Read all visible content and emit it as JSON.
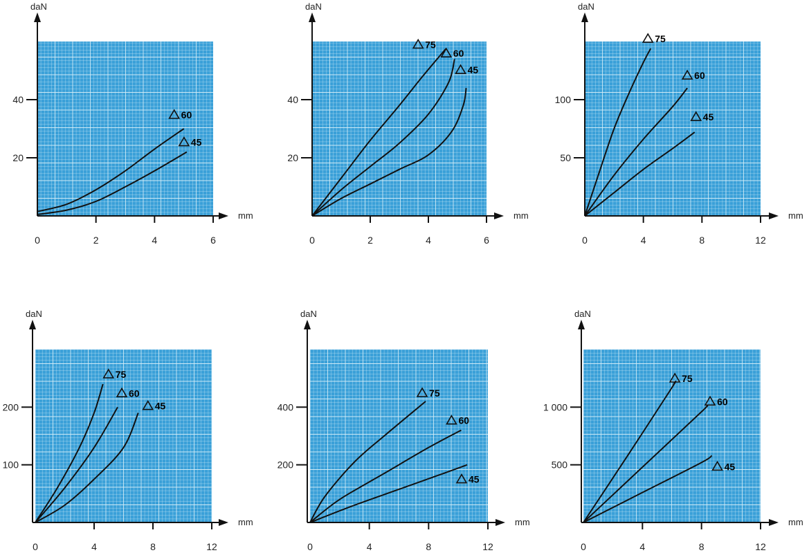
{
  "chart_data": [
    {
      "type": "line",
      "ylabel": "daN",
      "xlabel": "mm",
      "xlim": [
        0,
        6
      ],
      "ylim": [
        0,
        60
      ],
      "x_ticks": [
        "0",
        "2",
        "4",
        "6"
      ],
      "y_ticks": [
        {
          "value": 20,
          "label": "20"
        },
        {
          "value": 40,
          "label": "40"
        }
      ],
      "series": [
        {
          "name": "60",
          "points": [
            [
              0,
              1.5
            ],
            [
              1,
              4
            ],
            [
              2,
              9
            ],
            [
              3,
              15.5
            ],
            [
              4,
              23
            ],
            [
              5,
              30
            ]
          ]
        },
        {
          "name": "45",
          "points": [
            [
              0,
              0.5
            ],
            [
              1,
              2
            ],
            [
              2,
              5
            ],
            [
              3,
              10
            ],
            [
              4,
              15.5
            ],
            [
              5.1,
              22
            ]
          ]
        }
      ]
    },
    {
      "type": "line",
      "ylabel": "daN",
      "xlabel": "mm",
      "xlim": [
        0,
        6
      ],
      "ylim": [
        0,
        60
      ],
      "x_ticks": [
        "0",
        "2",
        "4",
        "6"
      ],
      "y_ticks": [
        {
          "value": 20,
          "label": "20"
        },
        {
          "value": 40,
          "label": "40"
        }
      ],
      "series": [
        {
          "name": "75",
          "points": [
            [
              0,
              0
            ],
            [
              1,
              13
            ],
            [
              2,
              26
            ],
            [
              3,
              38
            ],
            [
              3.8,
              48
            ],
            [
              4.6,
              57.5
            ]
          ]
        },
        {
          "name": "60",
          "points": [
            [
              0,
              0
            ],
            [
              1,
              9
            ],
            [
              2,
              17
            ],
            [
              3,
              25
            ],
            [
              4,
              35
            ],
            [
              4.7,
              46
            ],
            [
              4.9,
              54
            ]
          ]
        },
        {
          "name": "45",
          "points": [
            [
              0,
              0
            ],
            [
              1,
              6
            ],
            [
              2,
              11
            ],
            [
              3,
              16
            ],
            [
              4,
              21
            ],
            [
              4.8,
              29
            ],
            [
              5.2,
              38
            ],
            [
              5.3,
              44
            ]
          ]
        }
      ]
    },
    {
      "type": "line",
      "ylabel": "daN",
      "xlabel": "mm",
      "xlim": [
        0,
        12
      ],
      "ylim": [
        0,
        150
      ],
      "x_ticks": [
        "0",
        "4",
        "8",
        "12"
      ],
      "y_ticks": [
        {
          "value": 50,
          "label": "50"
        },
        {
          "value": 100,
          "label": "100"
        }
      ],
      "series": [
        {
          "name": "75",
          "points": [
            [
              0,
              0
            ],
            [
              1,
              38
            ],
            [
              2,
              75
            ],
            [
              3,
              105
            ],
            [
              4,
              132
            ],
            [
              4.5,
              144
            ]
          ]
        },
        {
          "name": "60",
          "points": [
            [
              0,
              0
            ],
            [
              2,
              35
            ],
            [
              4,
              66
            ],
            [
              6,
              94
            ],
            [
              7,
              110
            ]
          ]
        },
        {
          "name": "45",
          "points": [
            [
              0,
              0
            ],
            [
              2,
              20
            ],
            [
              4,
              40
            ],
            [
              6,
              58
            ],
            [
              7.5,
              72
            ]
          ]
        }
      ]
    },
    {
      "type": "line",
      "ylabel": "daN",
      "xlabel": "mm",
      "xlim": [
        0,
        12
      ],
      "ylim": [
        0,
        300
      ],
      "x_ticks": [
        "0",
        "4",
        "8",
        "12"
      ],
      "y_ticks": [
        {
          "value": 100,
          "label": "100"
        },
        {
          "value": 200,
          "label": "200"
        }
      ],
      "series": [
        {
          "name": "75",
          "points": [
            [
              0,
              0
            ],
            [
              1.5,
              60
            ],
            [
              3,
              130
            ],
            [
              4,
              190
            ],
            [
              4.6,
              240
            ]
          ]
        },
        {
          "name": "60",
          "points": [
            [
              0,
              0
            ],
            [
              2,
              60
            ],
            [
              4,
              130
            ],
            [
              5.6,
              200
            ]
          ]
        },
        {
          "name": "45",
          "points": [
            [
              0,
              0
            ],
            [
              2,
              30
            ],
            [
              4,
              75
            ],
            [
              6,
              130
            ],
            [
              7,
              190
            ]
          ]
        }
      ]
    },
    {
      "type": "line",
      "ylabel": "daN",
      "xlabel": "mm",
      "xlim": [
        0,
        12
      ],
      "ylim": [
        0,
        600
      ],
      "x_ticks": [
        "0",
        "4",
        "8",
        "12"
      ],
      "y_ticks": [
        {
          "value": 200,
          "label": "200"
        },
        {
          "value": 400,
          "label": "400"
        }
      ],
      "series": [
        {
          "name": "75",
          "points": [
            [
              0,
              0
            ],
            [
              1,
              90
            ],
            [
              3,
              210
            ],
            [
              5,
              300
            ],
            [
              7.8,
              420
            ]
          ]
        },
        {
          "name": "60",
          "points": [
            [
              0,
              0
            ],
            [
              2,
              80
            ],
            [
              5,
              170
            ],
            [
              8,
              260
            ],
            [
              10.2,
              320
            ]
          ]
        },
        {
          "name": "45",
          "points": [
            [
              0,
              0
            ],
            [
              3,
              60
            ],
            [
              6,
              115
            ],
            [
              9,
              170
            ],
            [
              10.6,
              200
            ]
          ]
        }
      ]
    },
    {
      "type": "line",
      "ylabel": "daN",
      "xlabel": "mm",
      "xlim": [
        0,
        12
      ],
      "ylim": [
        0,
        1500
      ],
      "x_ticks": [
        "0",
        "4",
        "8",
        "12"
      ],
      "y_ticks": [
        {
          "value": 500,
          "label": "500"
        },
        {
          "value": 1000,
          "label": "1 000"
        }
      ],
      "series": [
        {
          "name": "75",
          "points": [
            [
              0,
              0
            ],
            [
              3,
              580
            ],
            [
              6,
              1170
            ],
            [
              6.1,
              1200
            ]
          ]
        },
        {
          "name": "60",
          "points": [
            [
              0,
              0
            ],
            [
              4,
              480
            ],
            [
              8,
              960
            ],
            [
              8.3,
              1000
            ]
          ]
        },
        {
          "name": "45",
          "points": [
            [
              0,
              0
            ],
            [
              4,
              260
            ],
            [
              8,
              520
            ],
            [
              8.7,
              580
            ]
          ]
        }
      ]
    }
  ],
  "colors": {
    "grid_background": "#3aa0d8",
    "grid_line": "#d6eef8",
    "curve": "#111111",
    "axis": "#111111"
  }
}
